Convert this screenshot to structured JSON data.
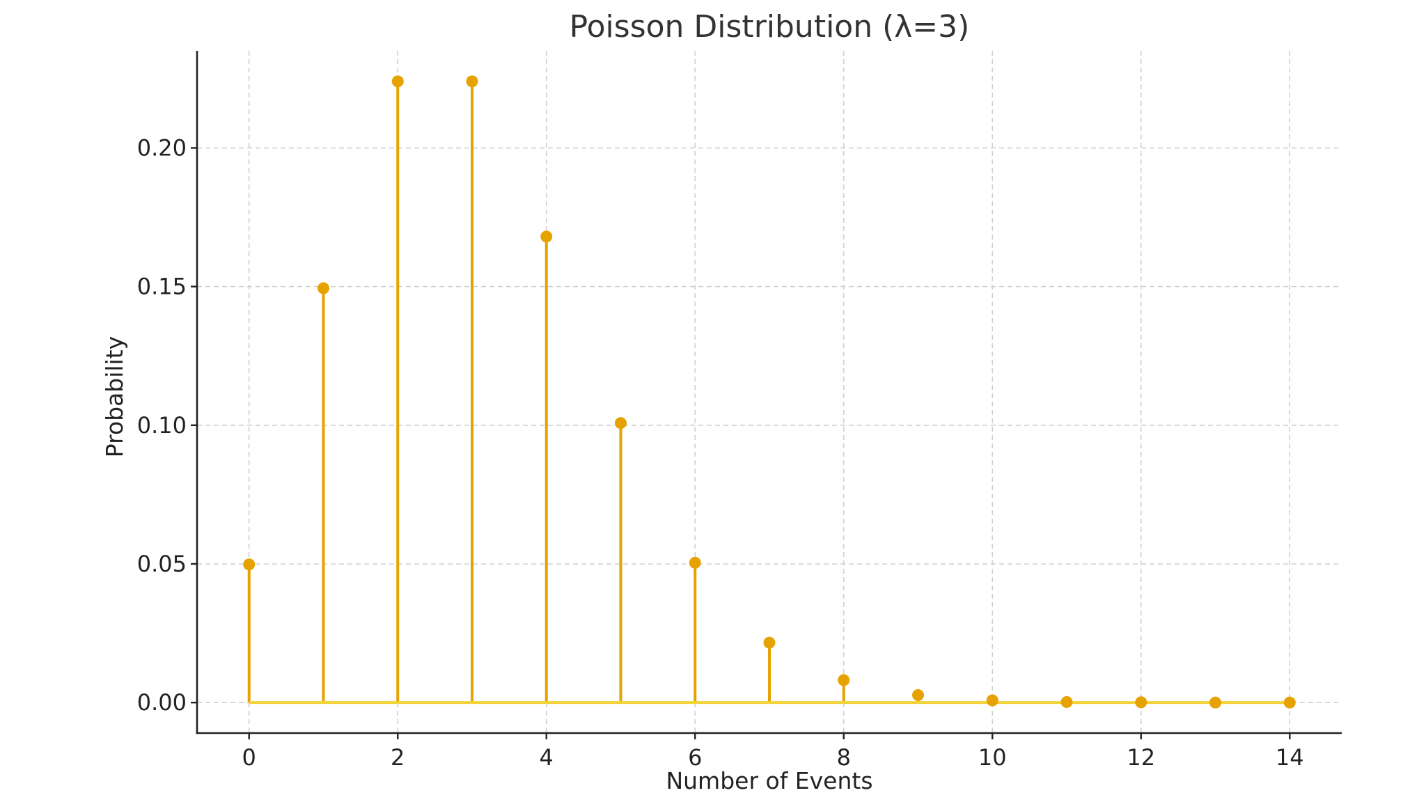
{
  "chart_data": {
    "type": "stem",
    "title": "Poisson Distribution (λ=3)",
    "xlabel": "Number of Events",
    "ylabel": "Probability",
    "x": [
      0,
      1,
      2,
      3,
      4,
      5,
      6,
      7,
      8,
      9,
      10,
      11,
      12,
      13,
      14
    ],
    "values": [
      0.0498,
      0.1494,
      0.224,
      0.224,
      0.168,
      0.1008,
      0.0504,
      0.0216,
      0.0081,
      0.0027,
      0.0008,
      0.0002,
      0.0001,
      0.0,
      0.0
    ],
    "xlim": [
      -0.7,
      14.7
    ],
    "ylim": [
      -0.011,
      0.235
    ],
    "xticks": [
      "0",
      "2",
      "4",
      "6",
      "8",
      "10",
      "12",
      "14"
    ],
    "yticks": [
      "0.00",
      "0.05",
      "0.10",
      "0.15",
      "0.20"
    ],
    "grid": true,
    "colors": {
      "stem": "#E6A200",
      "marker": "#E6A200",
      "baseline": "#F2D337",
      "grid": "#cfcfcf",
      "axis": "#222222"
    }
  }
}
